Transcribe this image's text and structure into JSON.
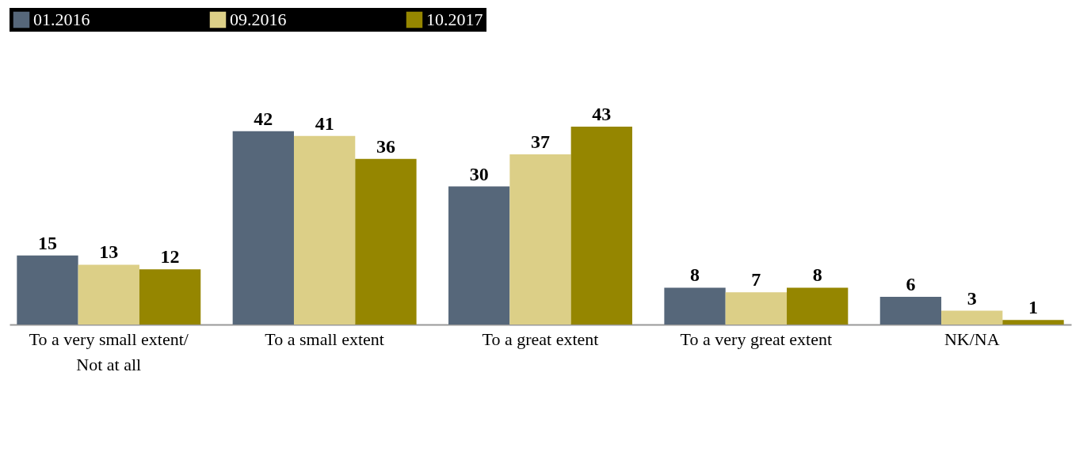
{
  "chart_data": {
    "type": "bar",
    "categories": [
      "To a very small extent/ Not at all",
      "To a small extent",
      "To a great extent",
      "To a very great extent",
      "NK/NA"
    ],
    "series": [
      {
        "name": "01.2016",
        "color": "#56677a",
        "values": [
          15,
          42,
          30,
          8,
          6
        ]
      },
      {
        "name": "09.2016",
        "color": "#dccf87",
        "values": [
          13,
          41,
          37,
          7,
          3
        ]
      },
      {
        "name": "10.2017",
        "color": "#958600",
        "values": [
          12,
          36,
          43,
          8,
          1
        ]
      }
    ],
    "data_labels": true,
    "legend": "top"
  }
}
